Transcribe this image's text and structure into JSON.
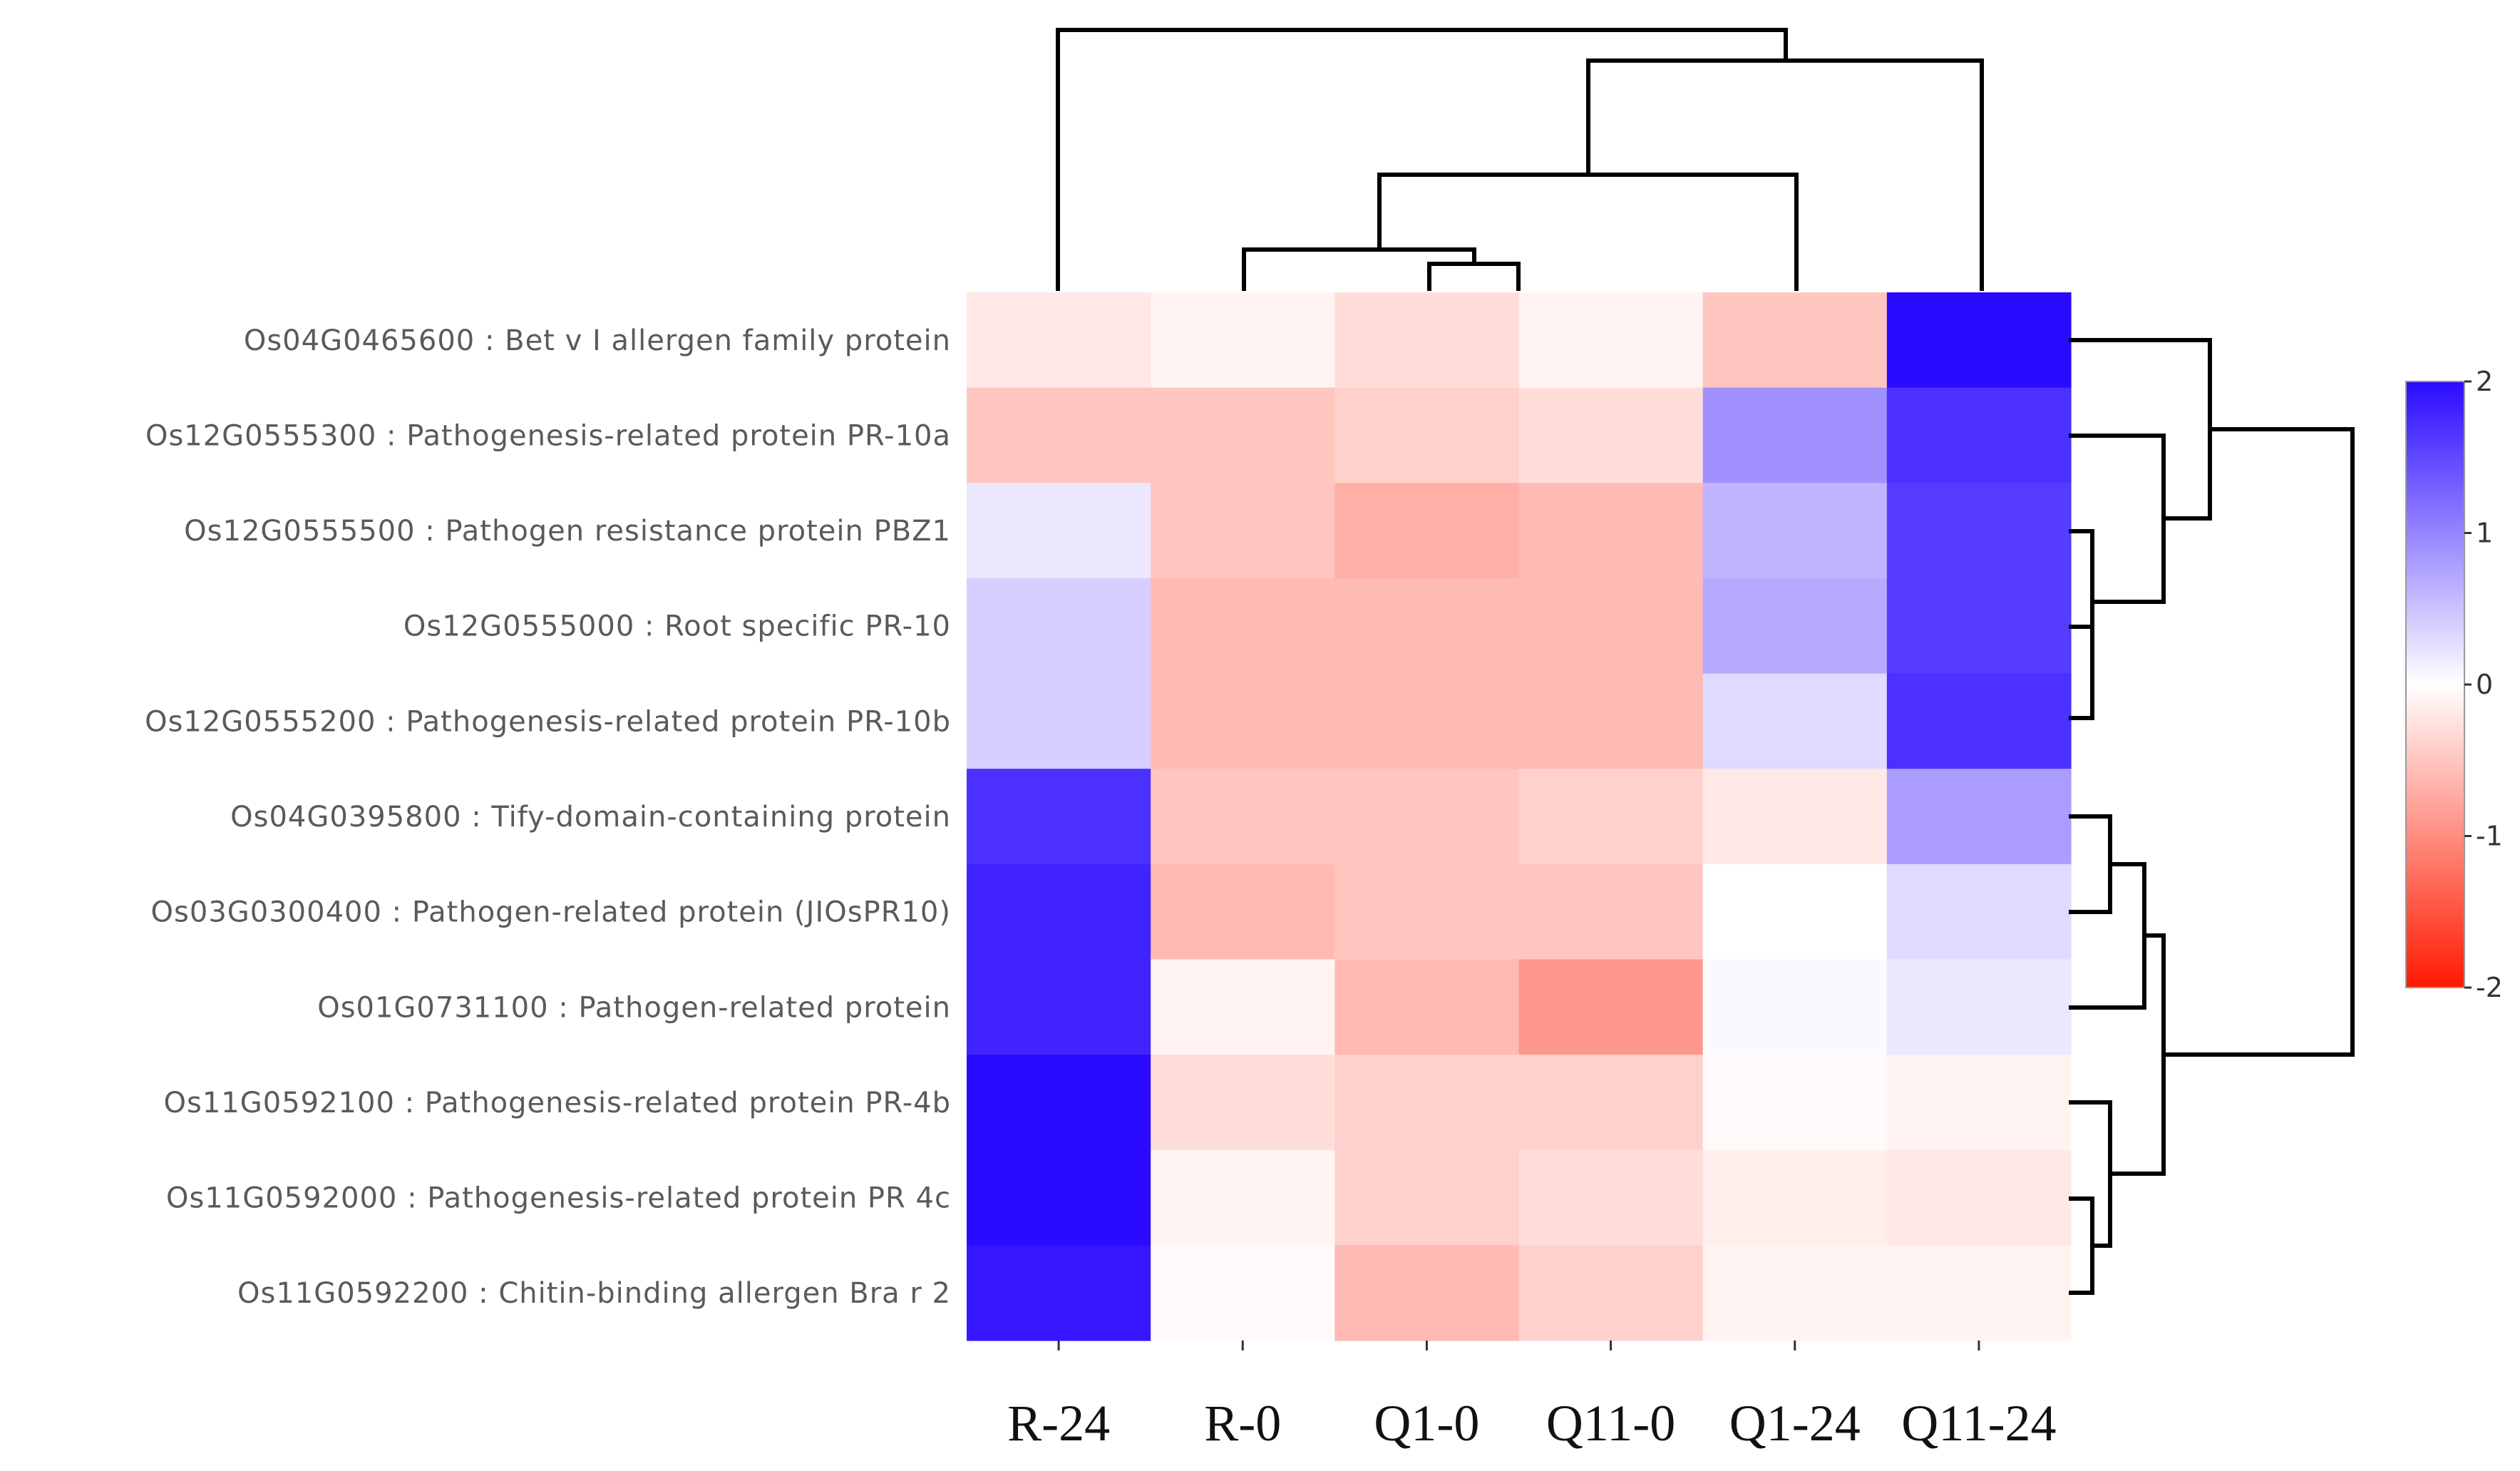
{
  "chart_data": {
    "type": "heatmap",
    "columns": [
      "R-24",
      "R-0",
      "Q1-0",
      "Q11-0",
      "Q1-24",
      "Q11-24"
    ],
    "rows": [
      "Os04G0465600 : Bet v I allergen family protein",
      "Os12G0555300 : Pathogenesis-related protein PR-10a",
      "Os12G0555500 : Pathogen resistance protein PBZ1",
      "Os12G0555000 : Root specific PR-10",
      "Os12G0555200 : Pathogenesis-related protein PR-10b",
      "Os04G0395800 : Tify-domain-containing protein",
      "Os03G0300400 : Pathogen-related protein (JIOsPR10)",
      "Os01G0731100 : Pathogen-related protein",
      "Os11G0592100 : Pathogenesis-related protein PR-4b",
      "Os11G0592000 : Pathogenesis-related protein PR 4c",
      "Os11G0592200 : Chitin-binding allergen Bra r 2"
    ],
    "values": [
      [
        -0.2,
        -0.1,
        -0.3,
        -0.1,
        -0.5,
        2.0
      ],
      [
        -0.5,
        -0.5,
        -0.4,
        -0.3,
        0.9,
        1.7
      ],
      [
        0.2,
        -0.5,
        -0.7,
        -0.6,
        0.6,
        1.6
      ],
      [
        0.4,
        -0.6,
        -0.6,
        -0.6,
        0.7,
        1.6
      ],
      [
        0.4,
        -0.6,
        -0.6,
        -0.6,
        0.3,
        1.7
      ],
      [
        1.7,
        -0.5,
        -0.5,
        -0.4,
        -0.2,
        0.8
      ],
      [
        1.8,
        -0.6,
        -0.5,
        -0.5,
        0.0,
        0.3
      ],
      [
        1.8,
        -0.1,
        -0.6,
        -0.9,
        0.05,
        0.2
      ],
      [
        2.0,
        -0.3,
        -0.4,
        -0.4,
        -0.05,
        -0.1
      ],
      [
        2.0,
        -0.1,
        -0.4,
        -0.3,
        -0.15,
        -0.2
      ],
      [
        1.9,
        -0.05,
        -0.6,
        -0.4,
        -0.1,
        -0.1
      ]
    ],
    "color_scale": {
      "min": -2,
      "max": 2,
      "low_color": "#ff1a00",
      "mid_color": "#ffffff",
      "high_color": "#2b0bff",
      "ticks": [
        2,
        1,
        0,
        -1,
        -2
      ]
    }
  }
}
